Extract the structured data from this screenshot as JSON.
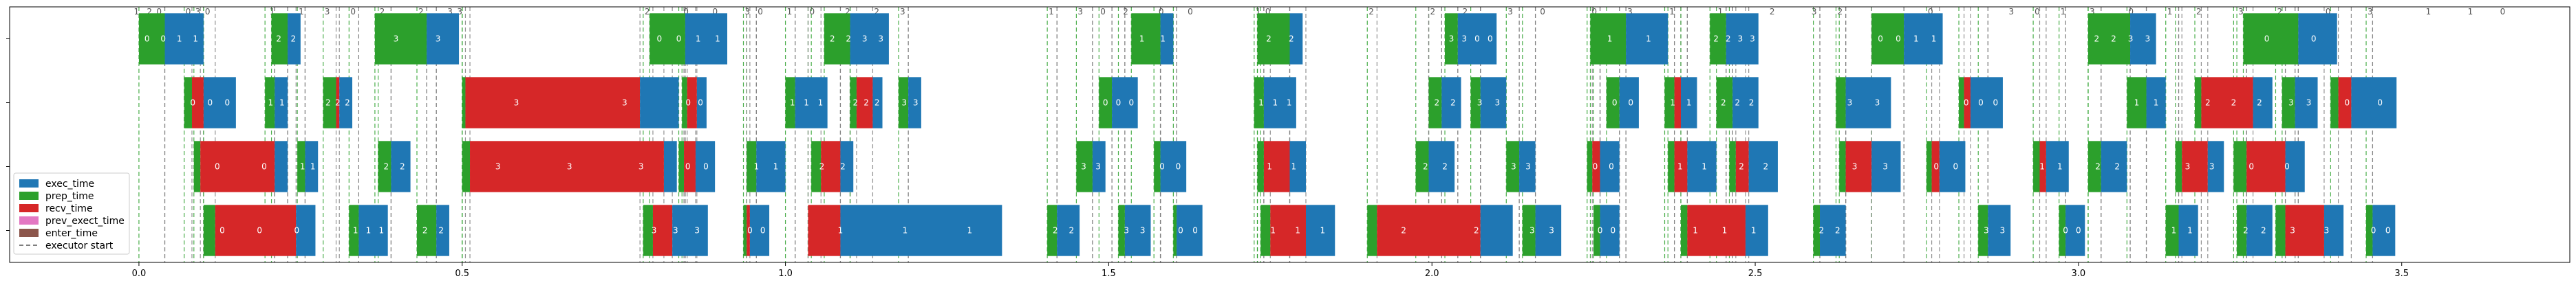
{
  "chart_data": {
    "type": "bar",
    "orientation": "horizontal-timeline",
    "xlim": [
      -0.2,
      3.76
    ],
    "xticks": [
      "0.0",
      "0.5",
      "1.0",
      "1.5",
      "2.0",
      "2.5",
      "3.0",
      "3.5"
    ],
    "xtick_values": [
      0,
      0.5,
      1.0,
      1.5,
      2.0,
      2.5,
      3.0,
      3.5
    ],
    "ylim": [
      -0.5,
      3.5
    ],
    "legend": {
      "placement": "lower-left",
      "entries": [
        {
          "key": "exec",
          "label": "exec_time",
          "color": "#1f77b4"
        },
        {
          "key": "prep",
          "label": "prep_time",
          "color": "#2ca02c"
        },
        {
          "key": "recv",
          "label": "recv_time",
          "color": "#d62728"
        },
        {
          "key": "prev",
          "label": "prev_exect_time",
          "color": "#e377c2"
        },
        {
          "key": "enter",
          "label": "enter_time",
          "color": "#8c564b"
        },
        {
          "key": "start",
          "label": "executor start",
          "color": "#555555"
        }
      ]
    },
    "series": [
      {
        "row": 3,
        "bars": [
          {
            "s": 0.0,
            "p": 0.04,
            "r": 0.0,
            "e": 0.06,
            "l": [
              "0",
              "0",
              "1",
              "1"
            ]
          },
          {
            "s": 0.205,
            "p": 0.025,
            "r": 0.0,
            "e": 0.02,
            "l": [
              "2",
              "2"
            ]
          },
          {
            "s": 0.365,
            "p": 0.08,
            "r": 0.0,
            "e": 0.05,
            "l": [
              "3",
              "3"
            ]
          },
          {
            "s": 0.79,
            "p": 0.055,
            "r": 0.0,
            "e": 0.065,
            "l": [
              "0",
              "0",
              "1",
              "1"
            ]
          },
          {
            "s": 1.06,
            "p": 0.04,
            "r": 0.0,
            "e": 0.06,
            "l": [
              "2",
              "2",
              "3",
              "3"
            ]
          },
          {
            "s": 1.535,
            "p": 0.045,
            "r": 0.0,
            "e": 0.02,
            "l": [
              "1",
              "1"
            ]
          },
          {
            "s": 1.73,
            "p": 0.05,
            "r": 0.0,
            "e": 0.02,
            "l": [
              "2",
              "2"
            ]
          },
          {
            "s": 2.02,
            "p": 0.02,
            "r": 0.0,
            "e": 0.06,
            "l": [
              "3",
              "3",
              "0",
              "0"
            ]
          },
          {
            "s": 2.245,
            "p": 0.055,
            "r": 0.0,
            "e": 0.065,
            "l": [
              "1",
              "1"
            ]
          },
          {
            "s": 2.43,
            "p": 0.025,
            "r": 0.0,
            "e": 0.05,
            "l": [
              "2",
              "2",
              "3",
              "3"
            ]
          },
          {
            "s": 2.68,
            "p": 0.05,
            "r": 0.0,
            "e": 0.06,
            "l": [
              "0",
              "0",
              "1",
              "1"
            ]
          },
          {
            "s": 3.015,
            "p": 0.065,
            "r": 0.0,
            "e": 0.04,
            "l": [
              "2",
              "2",
              "3",
              "3"
            ]
          },
          {
            "s": 3.255,
            "p": 0.085,
            "r": 0.0,
            "e": 0.06,
            "l": [
              "0",
              "0"
            ]
          }
        ]
      },
      {
        "row": 2,
        "bars": [
          {
            "s": 0.07,
            "p": 0.012,
            "r": 0.018,
            "e": 0.05,
            "l": [
              "0",
              "0",
              "0"
            ]
          },
          {
            "s": 0.195,
            "p": 0.015,
            "r": 0.0,
            "e": 0.02,
            "l": [
              "1",
              "1"
            ]
          },
          {
            "s": 0.285,
            "p": 0.02,
            "r": 0.005,
            "e": 0.02,
            "l": [
              "2",
              "2",
              "2"
            ]
          },
          {
            "s": 0.5,
            "p": 0.005,
            "r": 0.27,
            "e": 0.06,
            "l": [
              "3",
              "3"
            ]
          },
          {
            "s": 0.84,
            "p": 0.008,
            "r": 0.015,
            "e": 0.015,
            "l": [
              "0",
              "0"
            ]
          },
          {
            "s": 1.0,
            "p": 0.015,
            "r": 0.0,
            "e": 0.05,
            "l": [
              "1",
              "1",
              "1"
            ]
          },
          {
            "s": 1.1,
            "p": 0.01,
            "r": 0.025,
            "e": 0.015,
            "l": [
              "2",
              "2",
              "2"
            ]
          },
          {
            "s": 1.175,
            "p": 0.015,
            "r": 0.0,
            "e": 0.02,
            "l": [
              "3",
              "3"
            ]
          },
          {
            "s": 1.485,
            "p": 0.02,
            "r": 0.0,
            "e": 0.04,
            "l": [
              "0",
              "0",
              "0"
            ]
          },
          {
            "s": 1.725,
            "p": 0.015,
            "r": 0.0,
            "e": 0.05,
            "l": [
              "1",
              "1",
              "1"
            ]
          },
          {
            "s": 1.995,
            "p": 0.02,
            "r": 0.0,
            "e": 0.03,
            "l": [
              "2",
              "2"
            ]
          },
          {
            "s": 2.06,
            "p": 0.015,
            "r": 0.0,
            "e": 0.04,
            "l": [
              "3",
              "3"
            ]
          },
          {
            "s": 2.27,
            "p": 0.02,
            "r": 0.0,
            "e": 0.03,
            "l": [
              "0",
              "0"
            ]
          },
          {
            "s": 2.36,
            "p": 0.015,
            "r": 0.01,
            "e": 0.025,
            "l": [
              "1",
              "1"
            ]
          },
          {
            "s": 2.44,
            "p": 0.025,
            "r": 0.0,
            "e": 0.04,
            "l": [
              "2",
              "2",
              "2"
            ]
          },
          {
            "s": 2.625,
            "p": 0.015,
            "r": 0.0,
            "e": 0.07,
            "l": [
              "3",
              "3"
            ]
          },
          {
            "s": 2.815,
            "p": 0.008,
            "r": 0.01,
            "e": 0.05,
            "l": [
              "0",
              "0",
              "0"
            ]
          },
          {
            "s": 3.075,
            "p": 0.03,
            "r": 0.0,
            "e": 0.03,
            "l": [
              "1",
              "1"
            ]
          },
          {
            "s": 3.18,
            "p": 0.01,
            "r": 0.08,
            "e": 0.03,
            "l": [
              "2",
              "2",
              "2"
            ]
          },
          {
            "s": 3.315,
            "p": 0.02,
            "r": 0.0,
            "e": 0.035,
            "l": [
              "3",
              "3"
            ]
          },
          {
            "s": 3.39,
            "p": 0.012,
            "r": 0.02,
            "e": 0.07,
            "l": [
              "0",
              "0"
            ]
          }
        ]
      },
      {
        "row": 1,
        "bars": [
          {
            "s": 0.085,
            "p": 0.01,
            "r": 0.115,
            "e": 0.02,
            "l": [
              "0",
              "0"
            ]
          },
          {
            "s": 0.245,
            "p": 0.012,
            "r": 0.0,
            "e": 0.02,
            "l": [
              "1",
              "1"
            ]
          },
          {
            "s": 0.37,
            "p": 0.02,
            "r": 0.0,
            "e": 0.03,
            "l": [
              "2",
              "2"
            ]
          },
          {
            "s": 0.5,
            "p": 0.012,
            "r": 0.3,
            "e": 0.02,
            "l": [
              "3",
              "3",
              "3"
            ]
          },
          {
            "s": 0.835,
            "p": 0.008,
            "r": 0.018,
            "e": 0.03,
            "l": [
              "0",
              "0"
            ]
          },
          {
            "s": 0.94,
            "p": 0.015,
            "r": 0.0,
            "e": 0.045,
            "l": [
              "1",
              "1"
            ]
          },
          {
            "s": 1.04,
            "p": 0.015,
            "r": 0.03,
            "e": 0.02,
            "l": [
              "2",
              "2"
            ]
          },
          {
            "s": 1.45,
            "p": 0.025,
            "r": 0.0,
            "e": 0.02,
            "l": [
              "3",
              "3"
            ]
          },
          {
            "s": 1.57,
            "p": 0.01,
            "r": 0.0,
            "e": 0.04,
            "l": [
              "0",
              "0"
            ]
          },
          {
            "s": 1.73,
            "p": 0.01,
            "r": 0.04,
            "e": 0.025,
            "l": [
              "1",
              "1"
            ]
          },
          {
            "s": 1.975,
            "p": 0.02,
            "r": 0.0,
            "e": 0.04,
            "l": [
              "2",
              "2"
            ]
          },
          {
            "s": 2.115,
            "p": 0.02,
            "r": 0.0,
            "e": 0.025,
            "l": [
              "3",
              "3"
            ]
          },
          {
            "s": 2.24,
            "p": 0.008,
            "r": 0.012,
            "e": 0.03,
            "l": [
              "0",
              "0"
            ]
          },
          {
            "s": 2.365,
            "p": 0.01,
            "r": 0.02,
            "e": 0.045,
            "l": [
              "1",
              "1"
            ]
          },
          {
            "s": 2.46,
            "p": 0.01,
            "r": 0.02,
            "e": 0.045,
            "l": [
              "2",
              "2"
            ]
          },
          {
            "s": 2.63,
            "p": 0.01,
            "r": 0.04,
            "e": 0.045,
            "l": [
              "3",
              "3"
            ]
          },
          {
            "s": 2.765,
            "p": 0.008,
            "r": 0.012,
            "e": 0.04,
            "l": [
              "0",
              "0"
            ]
          },
          {
            "s": 2.93,
            "p": 0.01,
            "r": 0.01,
            "e": 0.035,
            "l": [
              "1",
              "1"
            ]
          },
          {
            "s": 3.015,
            "p": 0.02,
            "r": 0.0,
            "e": 0.04,
            "l": [
              "2",
              "2"
            ]
          },
          {
            "s": 3.15,
            "p": 0.01,
            "r": 0.04,
            "e": 0.025,
            "l": [
              "3",
              "3"
            ]
          },
          {
            "s": 3.24,
            "p": 0.02,
            "r": 0.06,
            "e": 0.03,
            "l": [
              "0",
              "0"
            ]
          }
        ]
      },
      {
        "row": 0,
        "bars": [
          {
            "s": 0.1,
            "p": 0.018,
            "r": 0.125,
            "e": 0.03,
            "l": [
              "0",
              "0",
              "0"
            ]
          },
          {
            "s": 0.325,
            "p": 0.015,
            "r": 0.0,
            "e": 0.045,
            "l": [
              "1",
              "1",
              "1"
            ]
          },
          {
            "s": 0.43,
            "p": 0.03,
            "r": 0.0,
            "e": 0.02,
            "l": [
              "2",
              "2"
            ]
          },
          {
            "s": 0.78,
            "p": 0.015,
            "r": 0.03,
            "e": 0.055,
            "l": [
              "3",
              "3",
              "3"
            ]
          },
          {
            "s": 0.935,
            "p": 0.005,
            "r": 0.005,
            "e": 0.03,
            "l": [
              "0",
              "0"
            ]
          },
          {
            "s": 1.035,
            "p": 0.0,
            "r": 0.05,
            "e": 0.25,
            "l": [
              "1",
              "1",
              "1"
            ]
          },
          {
            "s": 1.405,
            "p": 0.015,
            "r": 0.0,
            "e": 0.035,
            "l": [
              "2",
              "2"
            ]
          },
          {
            "s": 1.515,
            "p": 0.01,
            "r": 0.0,
            "e": 0.04,
            "l": [
              "3",
              "3"
            ]
          },
          {
            "s": 1.6,
            "p": 0.005,
            "r": 0.0,
            "e": 0.04,
            "l": [
              "0",
              "0"
            ]
          },
          {
            "s": 1.735,
            "p": 0.015,
            "r": 0.055,
            "e": 0.045,
            "l": [
              "1",
              "1",
              "1"
            ]
          },
          {
            "s": 1.9,
            "p": 0.015,
            "r": 0.16,
            "e": 0.05,
            "l": [
              "2",
              "2"
            ]
          },
          {
            "s": 2.14,
            "p": 0.02,
            "r": 0.0,
            "e": 0.04,
            "l": [
              "3",
              "3"
            ]
          },
          {
            "s": 2.25,
            "p": 0.01,
            "r": 0.0,
            "e": 0.03,
            "l": [
              "0",
              "0"
            ]
          },
          {
            "s": 2.385,
            "p": 0.01,
            "r": 0.09,
            "e": 0.035,
            "l": [
              "1",
              "1",
              "1"
            ]
          },
          {
            "s": 2.59,
            "p": 0.01,
            "r": 0.0,
            "e": 0.04,
            "l": [
              "2",
              "2"
            ]
          },
          {
            "s": 2.845,
            "p": 0.015,
            "r": 0.0,
            "e": 0.035,
            "l": [
              "3",
              "3"
            ]
          },
          {
            "s": 2.97,
            "p": 0.01,
            "r": 0.0,
            "e": 0.03,
            "l": [
              "0",
              "0"
            ]
          },
          {
            "s": 3.135,
            "p": 0.02,
            "r": 0.0,
            "e": 0.03,
            "l": [
              "1",
              "1"
            ]
          },
          {
            "s": 3.245,
            "p": 0.015,
            "r": 0.0,
            "e": 0.04,
            "l": [
              "2",
              "2"
            ]
          },
          {
            "s": 3.305,
            "p": 0.015,
            "r": 0.06,
            "e": 0.03,
            "l": [
              "3",
              "3"
            ]
          },
          {
            "s": 3.445,
            "p": 0.01,
            "r": 0.0,
            "e": 0.035,
            "l": [
              "0",
              "0"
            ]
          }
        ]
      }
    ],
    "top_markers": [
      {
        "x": -0.01,
        "l": "1"
      },
      {
        "x": 0.01,
        "l": "2"
      },
      {
        "x": 0.025,
        "l": "0"
      },
      {
        "x": 0.07,
        "l": "0"
      },
      {
        "x": 0.085,
        "l": "3"
      },
      {
        "x": 0.1,
        "l": "0"
      },
      {
        "x": 0.2,
        "l": "1"
      },
      {
        "x": 0.245,
        "l": "1"
      },
      {
        "x": 0.285,
        "l": "3"
      },
      {
        "x": 0.325,
        "l": "0"
      },
      {
        "x": 0.37,
        "l": "2"
      },
      {
        "x": 0.43,
        "l": "2"
      },
      {
        "x": 0.475,
        "l": "3"
      },
      {
        "x": 0.49,
        "l": "3"
      },
      {
        "x": 0.78,
        "l": "2"
      },
      {
        "x": 0.84,
        "l": "0"
      },
      {
        "x": 0.885,
        "l": "0"
      },
      {
        "x": 0.935,
        "l": "3"
      },
      {
        "x": 0.955,
        "l": "0"
      },
      {
        "x": 1.0,
        "l": "1"
      },
      {
        "x": 1.035,
        "l": "0"
      },
      {
        "x": 1.09,
        "l": "2"
      },
      {
        "x": 1.135,
        "l": "2"
      },
      {
        "x": 1.175,
        "l": "3"
      },
      {
        "x": 1.405,
        "l": "1"
      },
      {
        "x": 1.45,
        "l": "3"
      },
      {
        "x": 1.485,
        "l": "0"
      },
      {
        "x": 1.52,
        "l": "2"
      },
      {
        "x": 1.575,
        "l": "0"
      },
      {
        "x": 1.62,
        "l": "0"
      },
      {
        "x": 1.725,
        "l": "1"
      },
      {
        "x": 1.74,
        "l": "0"
      },
      {
        "x": 1.9,
        "l": "2"
      },
      {
        "x": 1.995,
        "l": "2"
      },
      {
        "x": 2.045,
        "l": "2"
      },
      {
        "x": 2.115,
        "l": "3"
      },
      {
        "x": 2.165,
        "l": "0"
      },
      {
        "x": 2.245,
        "l": "0"
      },
      {
        "x": 2.3,
        "l": "3"
      },
      {
        "x": 2.365,
        "l": "1"
      },
      {
        "x": 2.44,
        "l": "1"
      },
      {
        "x": 2.52,
        "l": "2"
      },
      {
        "x": 2.585,
        "l": "3"
      },
      {
        "x": 2.625,
        "l": "2"
      },
      {
        "x": 2.765,
        "l": "0"
      },
      {
        "x": 2.89,
        "l": "3"
      },
      {
        "x": 2.93,
        "l": "0"
      },
      {
        "x": 2.97,
        "l": "1"
      },
      {
        "x": 3.015,
        "l": "3"
      },
      {
        "x": 3.075,
        "l": "0"
      },
      {
        "x": 3.135,
        "l": "1"
      },
      {
        "x": 3.18,
        "l": "2"
      },
      {
        "x": 3.245,
        "l": "3"
      },
      {
        "x": 3.305,
        "l": "2"
      },
      {
        "x": 3.38,
        "l": "0"
      },
      {
        "x": 3.445,
        "l": "3"
      },
      {
        "x": 3.535,
        "l": "1"
      },
      {
        "x": 3.6,
        "l": "1"
      },
      {
        "x": 3.65,
        "l": "0"
      }
    ]
  }
}
